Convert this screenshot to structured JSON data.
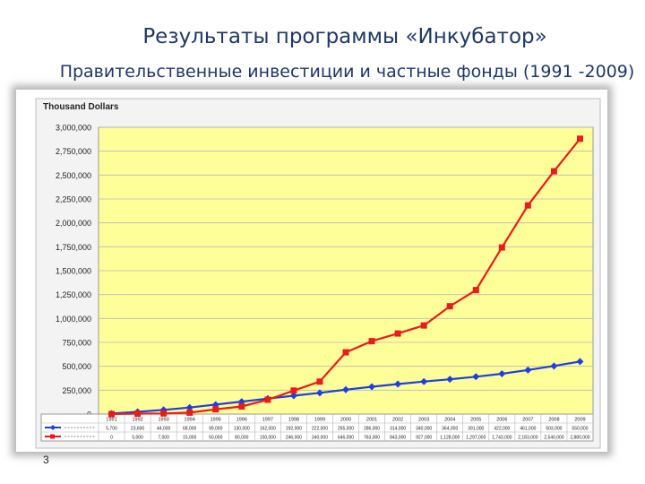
{
  "slide": {
    "title": "Результаты программы «Инкубатор»",
    "subtitle": "Правительственные инвестиции и частные фонды (1991 -2009)",
    "page_number": "3"
  },
  "chart_data": {
    "type": "line",
    "ylabel": "Thousand Dollars",
    "categories": [
      "1991",
      "1992",
      "1993",
      "1994",
      "1995",
      "1996",
      "1997",
      "1998",
      "1999",
      "2000",
      "2001",
      "2002",
      "2003",
      "2004",
      "2005",
      "2006",
      "2007",
      "2008",
      "2009"
    ],
    "ylim": [
      0,
      3000000
    ],
    "yticks": [
      0,
      250000,
      500000,
      750000,
      1000000,
      1250000,
      1500000,
      1750000,
      2000000,
      2250000,
      2500000,
      2750000,
      3000000
    ],
    "ytick_labels": [
      "0",
      "250,000",
      "500,000",
      "750,000",
      "1,000,000",
      "1,250,000",
      "1,500,000",
      "1,750,000",
      "2,000,000",
      "2,250,000",
      "2,500,000",
      "2,750,000",
      "3,000,000"
    ],
    "grid": true,
    "plot_background": "#ffff99",
    "series": [
      {
        "color": "#1f3ee0",
        "marker": "diamond",
        "values": [
          5700,
          23600,
          44000,
          68000,
          99000,
          130000,
          162000,
          192000,
          222000,
          255000,
          286000,
          314000,
          340000,
          364000,
          391000,
          422000,
          461000,
          503000,
          550000
        ],
        "table_values": [
          "5,700",
          "23,600",
          "44,000",
          "68,000",
          "99,000",
          "130,000",
          "162,000",
          "192,000",
          "222,000",
          "255,000",
          "286,000",
          "314,000",
          "340,000",
          "364,000",
          "391,000",
          "422,000",
          "461,000",
          "503,000",
          "550,000"
        ]
      },
      {
        "color": "#e81c1c",
        "marker": "square",
        "values": [
          0,
          5000,
          7000,
          15000,
          50000,
          80000,
          150000,
          246000,
          340000,
          646000,
          763000,
          843000,
          927000,
          1128000,
          1297000,
          1743000,
          2183000,
          2540000,
          2880000
        ],
        "table_values": [
          "0",
          "5,000",
          "7,000",
          "15,000",
          "50,000",
          "80,000",
          "150,000",
          "246,000",
          "340,000",
          "646,000",
          "763,000",
          "843,000",
          "927,000",
          "1,128,000",
          "1,297,000",
          "1,743,000",
          "2,183,000",
          "2,540,000",
          "2,880,000"
        ]
      }
    ]
  }
}
